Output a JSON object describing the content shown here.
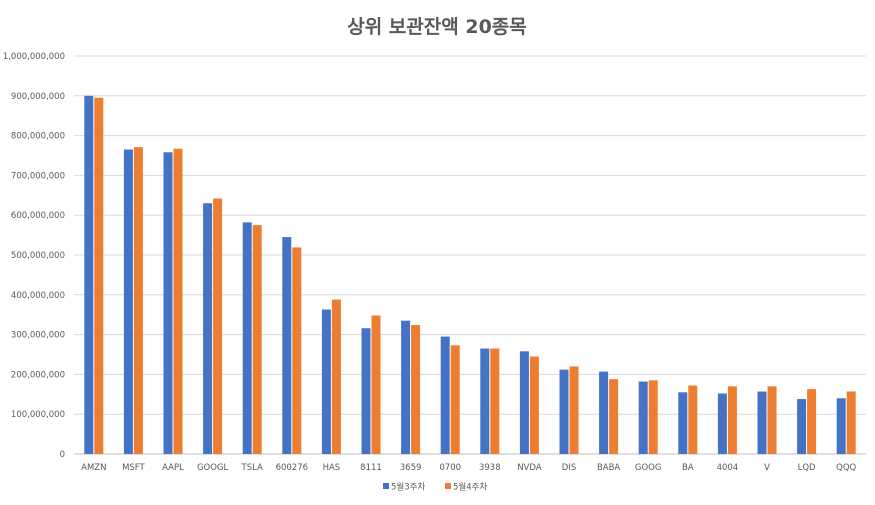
{
  "chart_data": {
    "type": "bar",
    "title": "상위 보관잔액 20종목",
    "xlabel": "",
    "ylabel": "",
    "ylim": [
      0,
      1000000000
    ],
    "yticks": [
      0,
      100000000,
      200000000,
      300000000,
      400000000,
      500000000,
      600000000,
      700000000,
      800000000,
      900000000,
      1000000000
    ],
    "ytick_labels": [
      "0",
      "100,000,000",
      "200,000,000",
      "300,000,000",
      "400,000,000",
      "500,000,000",
      "600,000,000",
      "700,000,000",
      "800,000,000",
      "900,000,000",
      "1,000,000,000"
    ],
    "grid": true,
    "legend_position": "bottom",
    "categories": [
      "AMZN",
      "MSFT",
      "AAPL",
      "GOOGL",
      "TSLA",
      "600276",
      "HAS",
      "8111",
      "3659",
      "0700",
      "3938",
      "NVDA",
      "DIS",
      "BABA",
      "GOOG",
      "BA",
      "4004",
      "V",
      "LQD",
      "QQQ"
    ],
    "series": [
      {
        "name": "5월3주차",
        "color": "#4472C4",
        "values": [
          900000000,
          765000000,
          758000000,
          630000000,
          582000000,
          545000000,
          363000000,
          316000000,
          335000000,
          295000000,
          265000000,
          258000000,
          212000000,
          207000000,
          182000000,
          155000000,
          152000000,
          157000000,
          138000000,
          140000000
        ]
      },
      {
        "name": "5월4주차",
        "color": "#ED7D31",
        "values": [
          895000000,
          771000000,
          767000000,
          642000000,
          575000000,
          519000000,
          388000000,
          348000000,
          324000000,
          273000000,
          265000000,
          245000000,
          220000000,
          188000000,
          185000000,
          172000000,
          170000000,
          170000000,
          163000000,
          157000000
        ]
      }
    ]
  }
}
